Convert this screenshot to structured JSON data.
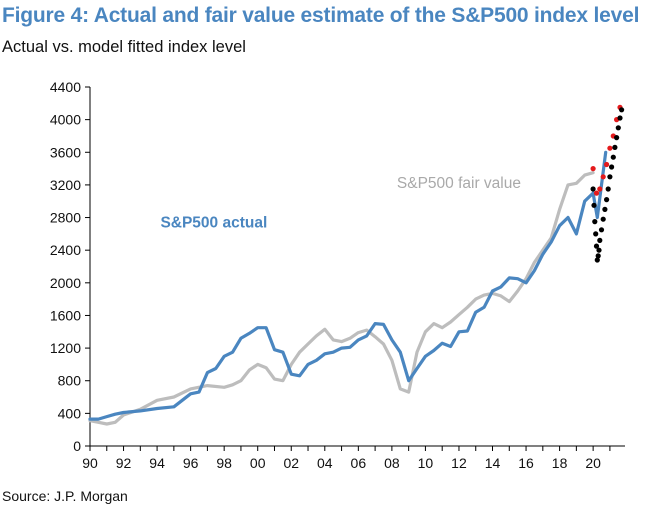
{
  "figure": {
    "title": "Figure 4: Actual and fair value estimate of the S&P500 index level",
    "subtitle": "Actual vs. model fitted index level",
    "source": "Source: J.P. Morgan"
  },
  "colors": {
    "actual": "#4a86c0",
    "fair_value": "#bdbdbd",
    "dots_red": "#e41a1c",
    "dots_black": "#000000",
    "title": "#4a86c0"
  },
  "chart_data": {
    "type": "line",
    "title": "",
    "xlabel": "",
    "ylabel": "",
    "xlim": [
      1990,
      2021.9
    ],
    "ylim": [
      0,
      4400
    ],
    "yticks": [
      0,
      400,
      800,
      1200,
      1600,
      2000,
      2400,
      2800,
      3200,
      3600,
      4000,
      4400
    ],
    "xticks": [
      1990,
      1992,
      1994,
      1996,
      1998,
      2000,
      2002,
      2004,
      2006,
      2008,
      2010,
      2012,
      2014,
      2016,
      2018,
      2020
    ],
    "xtick_labels": [
      "90",
      "92",
      "94",
      "96",
      "98",
      "00",
      "02",
      "04",
      "06",
      "08",
      "10",
      "12",
      "14",
      "16",
      "18",
      "20"
    ],
    "grid": false,
    "legend": "inline labels",
    "series": [
      {
        "name": "S&P500 actual",
        "color": "#4a86c0",
        "x": [
          1990,
          1990.5,
          1991,
          1991.5,
          1992,
          1993,
          1994,
          1995,
          1996,
          1996.5,
          1997,
          1997.5,
          1998,
          1998.5,
          1999,
          1999.5,
          2000,
          2000.5,
          2001,
          2001.5,
          2002,
          2002.5,
          2003,
          2003.5,
          2004,
          2004.5,
          2005,
          2005.5,
          2006,
          2006.5,
          2007,
          2007.5,
          2008,
          2008.5,
          2009,
          2009.5,
          2010,
          2010.5,
          2011,
          2011.5,
          2012,
          2012.5,
          2013,
          2013.5,
          2014,
          2014.5,
          2015,
          2015.5,
          2016,
          2016.5,
          2017,
          2017.5,
          2018,
          2018.5,
          2019,
          2019.5,
          2020,
          2020.25,
          2020.5,
          2020.75
        ],
        "y": [
          330,
          330,
          360,
          390,
          410,
          430,
          460,
          480,
          640,
          660,
          900,
          950,
          1100,
          1150,
          1320,
          1380,
          1450,
          1450,
          1180,
          1150,
          880,
          860,
          1000,
          1050,
          1130,
          1150,
          1200,
          1210,
          1300,
          1350,
          1500,
          1490,
          1300,
          1150,
          800,
          950,
          1100,
          1170,
          1260,
          1220,
          1400,
          1410,
          1640,
          1700,
          1900,
          1950,
          2060,
          2050,
          2000,
          2150,
          2350,
          2500,
          2700,
          2800,
          2600,
          3000,
          3100,
          2800,
          3200,
          3600
        ]
      },
      {
        "name": "S&P500 fair value",
        "color": "#bdbdbd",
        "x": [
          1990,
          1990.5,
          1991,
          1991.5,
          1992,
          1993,
          1994,
          1995,
          1996,
          1997,
          1998,
          1998.5,
          1999,
          1999.5,
          2000,
          2000.5,
          2001,
          2001.5,
          2002,
          2002.5,
          2003,
          2003.5,
          2004,
          2004.5,
          2005,
          2005.5,
          2006,
          2006.5,
          2007,
          2007.5,
          2008,
          2008.5,
          2009,
          2009.5,
          2010,
          2010.5,
          2011,
          2011.5,
          2012,
          2012.5,
          2013,
          2013.5,
          2014,
          2014.5,
          2015,
          2015.5,
          2016,
          2016.5,
          2017,
          2017.5,
          2018,
          2018.5,
          2019,
          2019.5,
          2020
        ],
        "y": [
          310,
          290,
          270,
          290,
          380,
          450,
          560,
          600,
          700,
          740,
          720,
          750,
          800,
          930,
          1000,
          960,
          820,
          800,
          1000,
          1150,
          1250,
          1350,
          1430,
          1300,
          1280,
          1320,
          1390,
          1420,
          1340,
          1250,
          1050,
          700,
          660,
          1150,
          1400,
          1500,
          1450,
          1520,
          1610,
          1700,
          1800,
          1850,
          1870,
          1840,
          1770,
          1900,
          2050,
          2250,
          2400,
          2550,
          2900,
          3200,
          3220,
          3320,
          3350
        ]
      },
      {
        "name": "",
        "color": "#e41a1c",
        "marker": "dot",
        "x": [
          2020,
          2020.2,
          2020.4,
          2020.6,
          2020.8,
          2021,
          2021.2,
          2021.4,
          2021.6
        ],
        "y": [
          3400,
          3100,
          3150,
          3300,
          3450,
          3650,
          3800,
          4000,
          4150
        ]
      },
      {
        "name": "",
        "color": "#000000",
        "marker": "dot",
        "x": [
          2020,
          2020.05,
          2020.1,
          2020.15,
          2020.2,
          2020.25,
          2020.3,
          2020.35,
          2020.4,
          2020.5,
          2020.6,
          2020.7,
          2020.8,
          2020.9,
          2021,
          2021.1,
          2021.2,
          2021.3,
          2021.4,
          2021.5,
          2021.6,
          2021.7
        ],
        "y": [
          3150,
          2950,
          2750,
          2600,
          2450,
          2280,
          2330,
          2400,
          2520,
          2650,
          2780,
          2900,
          3020,
          3150,
          3300,
          3420,
          3540,
          3660,
          3780,
          3900,
          4020,
          4120
        ]
      }
    ],
    "annotations": [
      {
        "text": "S&P500 actual",
        "color": "#4a86c0",
        "bold": true,
        "x": 1994.2,
        "y": 2680
      },
      {
        "text": "S&P500 fair value",
        "color": "#a9a9a9",
        "bold": false,
        "x": 2008.3,
        "y": 3160
      }
    ]
  }
}
